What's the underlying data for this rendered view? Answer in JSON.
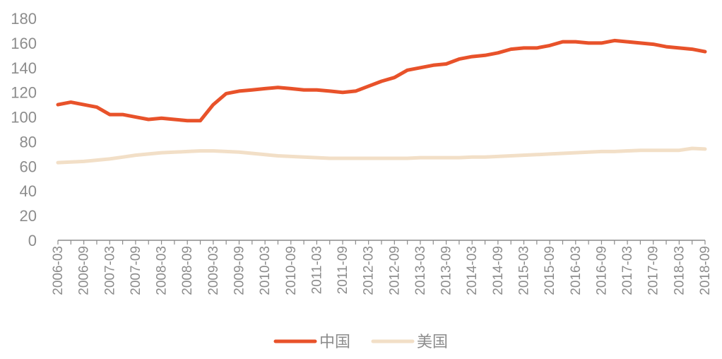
{
  "chart_data": {
    "type": "line",
    "title": "",
    "xlabel": "",
    "ylabel": "",
    "ylim": [
      0,
      180
    ],
    "yticks": [
      0,
      20,
      40,
      60,
      80,
      100,
      120,
      140,
      160,
      180
    ],
    "x_tick_labels": [
      "2006-03",
      "2006-09",
      "2007-03",
      "2007-09",
      "2008-03",
      "2008-09",
      "2009-03",
      "2009-09",
      "2010-03",
      "2010-09",
      "2011-03",
      "2011-09",
      "2012-03",
      "2012-09",
      "2013-03",
      "2013-09",
      "2014-03",
      "2014-09",
      "2015-03",
      "2015-09",
      "2016-03",
      "2016-09",
      "2017-03",
      "2017-09",
      "2018-03",
      "2018-09"
    ],
    "grid": false,
    "legend_position": "bottom-center",
    "x": [
      "2006-03",
      "2006-06",
      "2006-09",
      "2006-12",
      "2007-03",
      "2007-06",
      "2007-09",
      "2007-12",
      "2008-03",
      "2008-06",
      "2008-09",
      "2008-12",
      "2009-03",
      "2009-06",
      "2009-09",
      "2009-12",
      "2010-03",
      "2010-06",
      "2010-09",
      "2010-12",
      "2011-03",
      "2011-06",
      "2011-09",
      "2011-12",
      "2012-03",
      "2012-06",
      "2012-09",
      "2012-12",
      "2013-03",
      "2013-06",
      "2013-09",
      "2013-12",
      "2014-03",
      "2014-06",
      "2014-09",
      "2014-12",
      "2015-03",
      "2015-06",
      "2015-09",
      "2015-12",
      "2016-03",
      "2016-06",
      "2016-09",
      "2016-12",
      "2017-03",
      "2017-06",
      "2017-09",
      "2017-12",
      "2018-03",
      "2018-06",
      "2018-09"
    ],
    "series": [
      {
        "name": "中国",
        "color": "#E8522A",
        "values": [
          110,
          112,
          110,
          108,
          102,
          102,
          100,
          98,
          99,
          98,
          97,
          97,
          110,
          119,
          121,
          122,
          123,
          124,
          123,
          122,
          122,
          121,
          120,
          121,
          125,
          129,
          132,
          138,
          140,
          142,
          143,
          147,
          149,
          150,
          152,
          155,
          156,
          156,
          158,
          161,
          161,
          160,
          160,
          162,
          161,
          160,
          159,
          157,
          156,
          155,
          153
        ]
      },
      {
        "name": "美国",
        "color": "#F2DFC7",
        "values": [
          63,
          63.5,
          64,
          65,
          66,
          67.5,
          69,
          70,
          71,
          71.5,
          72,
          72.5,
          72.5,
          72,
          71.5,
          70.5,
          69.5,
          68.5,
          68,
          67.5,
          67,
          66.5,
          66.5,
          66.5,
          66.5,
          66.5,
          66.5,
          66.5,
          67,
          67,
          67,
          67,
          67.5,
          67.5,
          68,
          68.5,
          69,
          69.5,
          70,
          70.5,
          71,
          71.5,
          72,
          72,
          72.5,
          73,
          73,
          73,
          73,
          74.5,
          74
        ]
      }
    ]
  }
}
